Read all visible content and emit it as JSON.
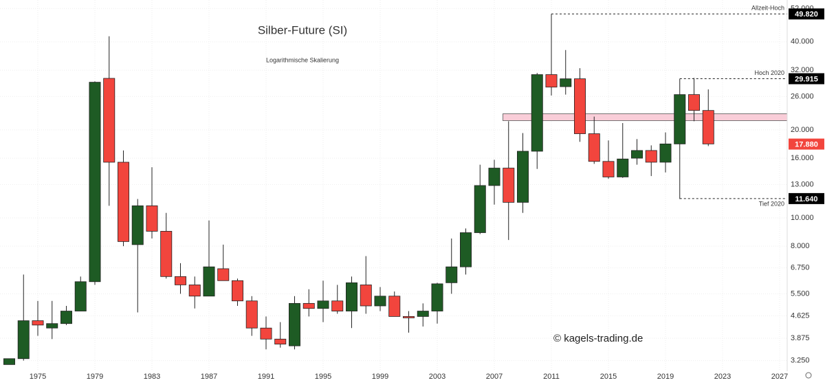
{
  "chart_data": {
    "type": "candlestick",
    "title": "Silber-Future (SI)",
    "subtitle": "Logarithmische Skalierung",
    "watermark": "© kagels-trading.de",
    "log_scale": true,
    "grid": true,
    "x": [
      1973,
      1974,
      1975,
      1976,
      1977,
      1978,
      1979,
      1980,
      1981,
      1982,
      1983,
      1984,
      1985,
      1986,
      1987,
      1988,
      1989,
      1990,
      1991,
      1992,
      1993,
      1994,
      1995,
      1996,
      1997,
      1998,
      1999,
      2000,
      2001,
      2002,
      2003,
      2004,
      2005,
      2006,
      2007,
      2008,
      2009,
      2010,
      2011,
      2012,
      2013,
      2014,
      2015,
      2016,
      2017,
      2018,
      2019,
      2020,
      2021,
      2022
    ],
    "open": [
      3.15,
      3.3,
      4.45,
      4.2,
      4.35,
      4.8,
      6.05,
      30.0,
      15.5,
      8.1,
      11.0,
      9.0,
      6.3,
      5.9,
      5.4,
      6.7,
      6.1,
      5.2,
      4.2,
      3.85,
      3.65,
      5.1,
      4.9,
      5.2,
      4.8,
      5.9,
      5.0,
      5.4,
      4.6,
      4.6,
      4.8,
      6.0,
      6.8,
      8.9,
      12.9,
      14.8,
      11.3,
      16.9,
      30.9,
      28.1,
      29.9,
      19.4,
      15.6,
      13.8,
      16.0,
      17.0,
      15.5,
      17.9,
      26.4,
      23.3
    ],
    "high": [
      3.3,
      6.4,
      5.2,
      5.2,
      5.0,
      6.3,
      29.3,
      41.8,
      17.0,
      11.6,
      14.9,
      10.4,
      7.0,
      6.3,
      9.8,
      8.1,
      6.2,
      5.4,
      4.6,
      4.4,
      5.4,
      5.7,
      6.1,
      5.9,
      6.3,
      7.4,
      5.8,
      5.6,
      4.8,
      5.1,
      6.0,
      8.5,
      9.2,
      15.2,
      15.8,
      21.4,
      19.5,
      31.3,
      49.8,
      37.5,
      32.5,
      22.2,
      18.4,
      21.1,
      18.6,
      17.7,
      19.6,
      29.9,
      30.1,
      27.5
    ],
    "low": [
      3.15,
      3.25,
      3.95,
      3.85,
      4.3,
      4.8,
      5.9,
      11.0,
      8.0,
      4.75,
      8.5,
      6.2,
      5.5,
      4.9,
      5.4,
      6.1,
      5.0,
      3.95,
      3.55,
      3.6,
      3.55,
      4.6,
      4.4,
      4.7,
      4.2,
      4.7,
      4.8,
      4.6,
      4.05,
      4.25,
      4.35,
      5.5,
      6.4,
      8.8,
      11.1,
      8.4,
      10.4,
      14.7,
      26.2,
      26.4,
      18.2,
      15.3,
      13.6,
      13.7,
      15.2,
      13.9,
      14.3,
      11.6,
      21.4,
      17.6
    ],
    "close": [
      3.3,
      4.45,
      4.3,
      4.35,
      4.8,
      6.05,
      29.1,
      15.5,
      8.3,
      11.0,
      9.0,
      6.3,
      5.9,
      5.4,
      6.8,
      6.1,
      5.2,
      4.2,
      3.85,
      3.7,
      5.1,
      4.9,
      5.2,
      4.8,
      6.0,
      5.0,
      5.4,
      4.6,
      4.55,
      4.8,
      5.95,
      6.8,
      8.9,
      12.9,
      14.8,
      11.3,
      16.9,
      30.9,
      28.0,
      29.9,
      19.4,
      15.6,
      13.8,
      15.9,
      17.0,
      15.5,
      17.9,
      26.4,
      23.3,
      17.9
    ],
    "up_color": "#1e5b24",
    "down_color": "#f2453d",
    "xlim": [
      1972.35,
      2027.53
    ],
    "xticks": [
      1975,
      1979,
      1983,
      1987,
      1991,
      1995,
      1999,
      2003,
      2007,
      2011,
      2015,
      2019,
      2023,
      2027
    ],
    "ylim": [
      2.99,
      55.6
    ],
    "yticks": [
      {
        "value": 3.25,
        "label": "3.250"
      },
      {
        "value": 3.875,
        "label": "3.875"
      },
      {
        "value": 4.625,
        "label": "4.625"
      },
      {
        "value": 5.5,
        "label": "5.500"
      },
      {
        "value": 6.75,
        "label": "6.750"
      },
      {
        "value": 8,
        "label": "8.000"
      },
      {
        "value": 10,
        "label": "10.000"
      },
      {
        "value": 13,
        "label": "13.000"
      },
      {
        "value": 16,
        "label": "16.000"
      },
      {
        "value": 20,
        "label": "20.000"
      },
      {
        "value": 26,
        "label": "26.000"
      },
      {
        "value": 32,
        "label": "32.000"
      },
      {
        "value": 40,
        "label": "40.000"
      },
      {
        "value": 52,
        "label": "52.000"
      }
    ],
    "zone": {
      "range": [
        21.5,
        22.7
      ],
      "x": 2008,
      "color": "#f9cdd8"
    },
    "price_tags": [
      {
        "value": 49.82,
        "label": "49.820",
        "text": "Allzeit-Hoch",
        "x": 2011,
        "color": "#000000",
        "text_side": "above"
      },
      {
        "value": 29.915,
        "label": "29.915",
        "text": "Hoch 2020",
        "x": 2020,
        "color": "#000000",
        "text_side": "above"
      },
      {
        "value": 17.88,
        "label": "17.880",
        "color": "#f2453d"
      },
      {
        "value": 11.64,
        "label": "11.640",
        "text": "Tief 2020",
        "x": 2020,
        "color": "#000000",
        "text_side": "below"
      }
    ]
  }
}
